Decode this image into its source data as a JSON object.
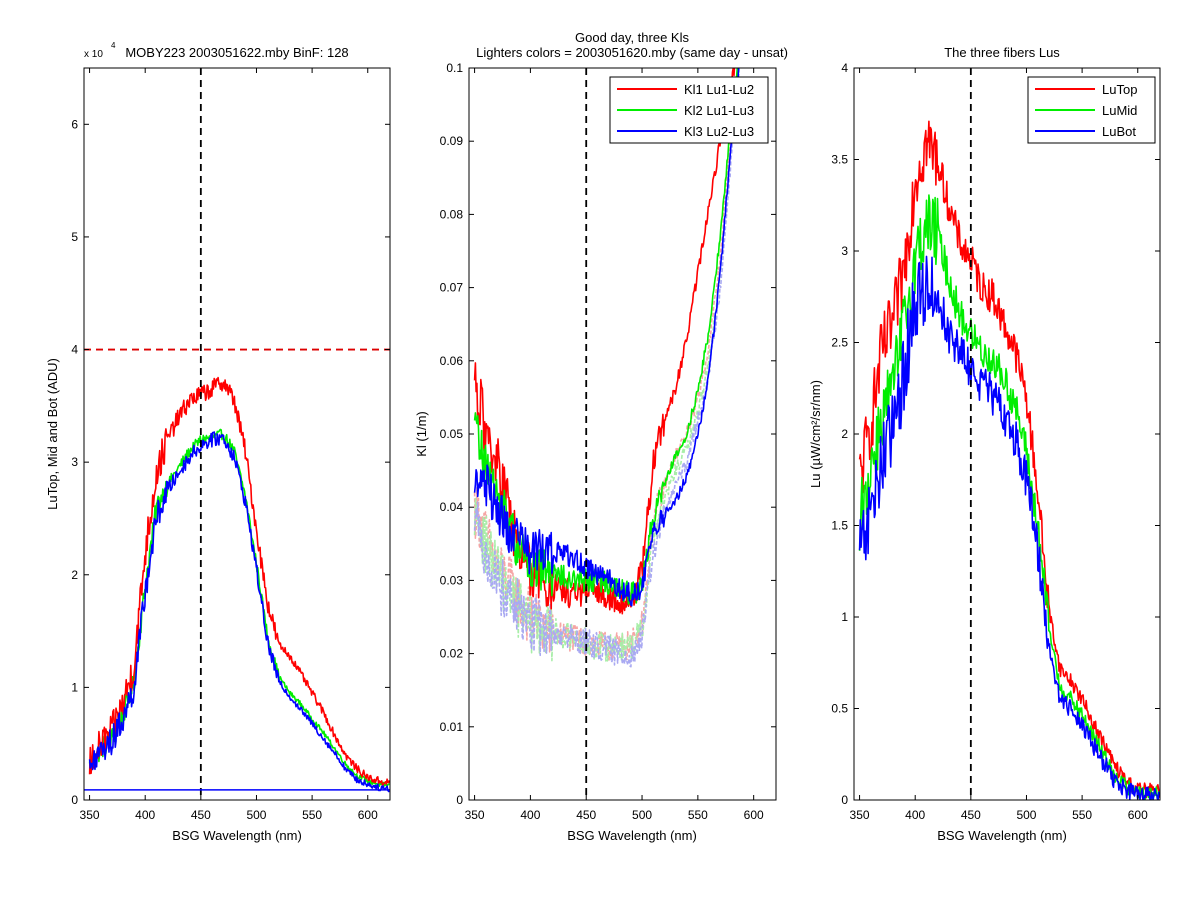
{
  "figure": {
    "background": "#ffffff"
  },
  "colors": {
    "red": "#ff0000",
    "green": "#00ee00",
    "blue": "#0000ff",
    "light_red": "#f6a5a5",
    "light_green": "#a8eea8",
    "light_blue": "#a9a9f2",
    "dashed_red": "#dd0000",
    "black": "#000000"
  },
  "chart_data": [
    {
      "type": "line",
      "title": "MOBY223  2003051622.mby BinF: 128",
      "exponent_label": "x 10",
      "exponent_power": "4",
      "xlabel": "BSG Wavelength (nm)",
      "ylabel": "LuTop, Mid and Bot (ADU)",
      "xlim": [
        345,
        620
      ],
      "ylim": [
        0,
        6.5
      ],
      "y_scale_factor": 10000,
      "xticks": [
        350,
        400,
        450,
        500,
        550,
        600
      ],
      "yticks": [
        0,
        1,
        2,
        3,
        4,
        5,
        6
      ],
      "grid": false,
      "legend": null,
      "reference_lines": [
        {
          "orientation": "vertical",
          "x": 450,
          "style": "dashed",
          "color": "#000000"
        },
        {
          "orientation": "horizontal",
          "y": 4,
          "style": "dashed",
          "color": "#dd0000"
        },
        {
          "orientation": "horizontal",
          "y": 0.09,
          "style": "solid",
          "color": "#0000ff"
        }
      ],
      "series": [
        {
          "color": "#00ee00",
          "x": [
            350,
            360,
            370,
            380,
            390,
            400,
            410,
            420,
            430,
            440,
            450,
            460,
            470,
            480,
            490,
            500,
            510,
            520,
            530,
            540,
            550,
            560,
            570,
            580,
            590,
            600,
            610,
            620
          ],
          "y": [
            0.3,
            0.45,
            0.55,
            0.75,
            1.05,
            1.9,
            2.6,
            2.8,
            2.95,
            3.1,
            3.2,
            3.22,
            3.25,
            3.1,
            2.7,
            2.1,
            1.45,
            1.1,
            0.95,
            0.85,
            0.72,
            0.6,
            0.46,
            0.32,
            0.22,
            0.17,
            0.14,
            0.13
          ],
          "noise": 0.06
        },
        {
          "color": "#ff0000",
          "x": [
            350,
            360,
            370,
            380,
            390,
            400,
            410,
            420,
            430,
            440,
            450,
            460,
            470,
            480,
            490,
            500,
            510,
            520,
            530,
            540,
            550,
            560,
            570,
            580,
            590,
            600,
            610,
            620
          ],
          "y": [
            0.32,
            0.48,
            0.6,
            0.85,
            1.2,
            2.2,
            2.9,
            3.2,
            3.4,
            3.55,
            3.6,
            3.65,
            3.72,
            3.55,
            3.1,
            2.4,
            1.75,
            1.38,
            1.28,
            1.12,
            0.95,
            0.78,
            0.58,
            0.4,
            0.28,
            0.2,
            0.17,
            0.15
          ],
          "noise": 0.1
        },
        {
          "color": "#0000ff",
          "x": [
            350,
            360,
            370,
            380,
            390,
            400,
            410,
            420,
            430,
            440,
            450,
            460,
            470,
            480,
            490,
            500,
            510,
            520,
            530,
            540,
            550,
            560,
            570,
            580,
            590,
            600,
            610,
            620
          ],
          "y": [
            0.3,
            0.43,
            0.52,
            0.72,
            1.0,
            1.85,
            2.5,
            2.75,
            2.9,
            3.05,
            3.15,
            3.2,
            3.22,
            3.05,
            2.65,
            2.05,
            1.4,
            1.05,
            0.92,
            0.8,
            0.68,
            0.55,
            0.42,
            0.28,
            0.18,
            0.14,
            0.11,
            0.1
          ],
          "noise": 0.08
        }
      ]
    },
    {
      "type": "line",
      "title": "Good day, three Kls",
      "subtitle": "Lighters colors = 2003051620.mby (same day - unsat)",
      "xlabel": "BSG Wavelength (nm)",
      "ylabel": "Kl (1/m)",
      "xlim": [
        345,
        620
      ],
      "ylim": [
        0,
        0.1
      ],
      "xticks": [
        350,
        400,
        450,
        500,
        550,
        600
      ],
      "yticks": [
        0,
        0.01,
        0.02,
        0.03,
        0.04,
        0.05,
        0.06,
        0.07,
        0.08,
        0.09,
        0.1
      ],
      "grid": false,
      "legend": {
        "position": "top-right"
      },
      "reference_lines": [
        {
          "orientation": "vertical",
          "x": 450,
          "style": "dashed",
          "color": "#000000"
        }
      ],
      "series": [
        {
          "color": "#f6a5a5",
          "x": [
            350,
            360,
            370,
            380,
            390,
            400,
            420,
            440,
            460,
            480,
            490,
            500,
            510,
            520,
            530,
            540,
            550,
            560,
            570,
            580,
            590
          ],
          "y": [
            0.04,
            0.036,
            0.032,
            0.03,
            0.027,
            0.025,
            0.023,
            0.022,
            0.021,
            0.021,
            0.021,
            0.024,
            0.038,
            0.043,
            0.047,
            0.05,
            0.055,
            0.062,
            0.074,
            0.092,
            0.105
          ],
          "noise": 0.0025
        },
        {
          "color": "#a8eea8",
          "x": [
            350,
            360,
            370,
            380,
            390,
            400,
            420,
            440,
            460,
            480,
            490,
            500,
            510,
            520,
            530,
            540,
            550,
            560,
            570,
            580,
            590
          ],
          "y": [
            0.039,
            0.035,
            0.031,
            0.029,
            0.026,
            0.024,
            0.023,
            0.022,
            0.021,
            0.021,
            0.021,
            0.023,
            0.036,
            0.041,
            0.045,
            0.048,
            0.053,
            0.06,
            0.072,
            0.09,
            0.105
          ],
          "noise": 0.0025
        },
        {
          "color": "#a9a9f2",
          "x": [
            350,
            360,
            370,
            380,
            390,
            400,
            420,
            440,
            460,
            480,
            490,
            500,
            510,
            520,
            530,
            540,
            550,
            560,
            570,
            580,
            590
          ],
          "y": [
            0.038,
            0.034,
            0.03,
            0.028,
            0.026,
            0.024,
            0.023,
            0.022,
            0.021,
            0.02,
            0.02,
            0.022,
            0.034,
            0.039,
            0.043,
            0.046,
            0.052,
            0.058,
            0.07,
            0.088,
            0.105
          ],
          "noise": 0.0025
        },
        {
          "name": "Kl1 Lu1-Lu2",
          "color": "#ff0000",
          "x": [
            350,
            360,
            370,
            380,
            390,
            400,
            420,
            440,
            460,
            480,
            490,
            500,
            510,
            520,
            530,
            540,
            550,
            560,
            570,
            580,
            590
          ],
          "y": [
            0.058,
            0.05,
            0.046,
            0.04,
            0.034,
            0.031,
            0.029,
            0.028,
            0.0285,
            0.0275,
            0.027,
            0.031,
            0.046,
            0.052,
            0.056,
            0.063,
            0.072,
            0.081,
            0.09,
            0.098,
            0.105
          ],
          "noise": 0.0025
        },
        {
          "name": "Kl2 Lu1-Lu3",
          "color": "#00ee00",
          "x": [
            350,
            360,
            370,
            380,
            390,
            400,
            420,
            440,
            460,
            480,
            490,
            500,
            510,
            520,
            530,
            540,
            550,
            560,
            570,
            580,
            590
          ],
          "y": [
            0.052,
            0.046,
            0.042,
            0.038,
            0.034,
            0.032,
            0.031,
            0.03,
            0.03,
            0.029,
            0.028,
            0.029,
            0.039,
            0.043,
            0.047,
            0.05,
            0.056,
            0.064,
            0.077,
            0.093,
            0.105
          ],
          "noise": 0.002
        },
        {
          "name": "Kl3 Lu2-Lu3",
          "color": "#0000ff",
          "x": [
            350,
            360,
            370,
            380,
            390,
            400,
            420,
            440,
            460,
            480,
            490,
            500,
            510,
            520,
            530,
            540,
            550,
            560,
            570,
            580,
            590
          ],
          "y": [
            0.045,
            0.043,
            0.04,
            0.037,
            0.035,
            0.034,
            0.034,
            0.033,
            0.031,
            0.029,
            0.028,
            0.029,
            0.036,
            0.039,
            0.041,
            0.044,
            0.05,
            0.058,
            0.072,
            0.09,
            0.105
          ],
          "noise": 0.002
        }
      ]
    },
    {
      "type": "line",
      "title": "The three fibers Lus",
      "xlabel": "BSG Wavelength (nm)",
      "ylabel": "Lu (µW/cm²/sr/nm)",
      "xlim": [
        345,
        620
      ],
      "ylim": [
        0,
        4
      ],
      "xticks": [
        350,
        400,
        450,
        500,
        550,
        600
      ],
      "yticks": [
        0,
        0.5,
        1,
        1.5,
        2,
        2.5,
        3,
        3.5,
        4
      ],
      "grid": false,
      "legend": {
        "position": "top-right"
      },
      "reference_lines": [
        {
          "orientation": "vertical",
          "x": 450,
          "style": "dashed",
          "color": "#000000"
        }
      ],
      "series": [
        {
          "name": "LuTop",
          "color": "#ff0000",
          "x": [
            350,
            360,
            370,
            380,
            390,
            400,
            410,
            420,
            430,
            440,
            450,
            460,
            470,
            480,
            490,
            500,
            510,
            520,
            530,
            540,
            550,
            560,
            570,
            580,
            590,
            600,
            610,
            620
          ],
          "y": [
            1.75,
            2.05,
            2.45,
            2.6,
            2.9,
            3.4,
            3.6,
            3.5,
            3.25,
            3.05,
            2.95,
            2.8,
            2.75,
            2.6,
            2.45,
            2.2,
            1.7,
            1.05,
            0.72,
            0.65,
            0.55,
            0.42,
            0.3,
            0.18,
            0.1,
            0.06,
            0.05,
            0.04
          ],
          "noise": 0.12
        },
        {
          "name": "LuMid",
          "color": "#00ee00",
          "x": [
            350,
            360,
            370,
            380,
            390,
            400,
            410,
            420,
            430,
            440,
            450,
            460,
            470,
            480,
            490,
            500,
            510,
            520,
            530,
            540,
            550,
            560,
            570,
            580,
            590,
            600,
            610,
            620
          ],
          "y": [
            1.55,
            1.8,
            2.1,
            2.25,
            2.6,
            2.95,
            3.15,
            3.1,
            2.85,
            2.65,
            2.55,
            2.45,
            2.4,
            2.3,
            2.15,
            1.9,
            1.5,
            0.95,
            0.62,
            0.55,
            0.46,
            0.35,
            0.24,
            0.13,
            0.07,
            0.04,
            0.03,
            0.03
          ],
          "noise": 0.12
        },
        {
          "name": "LuBot",
          "color": "#0000ff",
          "x": [
            350,
            360,
            370,
            380,
            390,
            400,
            410,
            420,
            430,
            440,
            450,
            460,
            470,
            480,
            490,
            500,
            510,
            520,
            530,
            540,
            550,
            560,
            570,
            580,
            590,
            600,
            610,
            620
          ],
          "y": [
            1.3,
            1.55,
            1.85,
            2.0,
            2.35,
            2.7,
            2.82,
            2.75,
            2.55,
            2.45,
            2.35,
            2.28,
            2.2,
            2.1,
            1.98,
            1.75,
            1.38,
            0.85,
            0.55,
            0.5,
            0.42,
            0.3,
            0.2,
            0.1,
            0.05,
            0.03,
            0.02,
            0.02
          ],
          "noise": 0.14
        }
      ]
    }
  ]
}
